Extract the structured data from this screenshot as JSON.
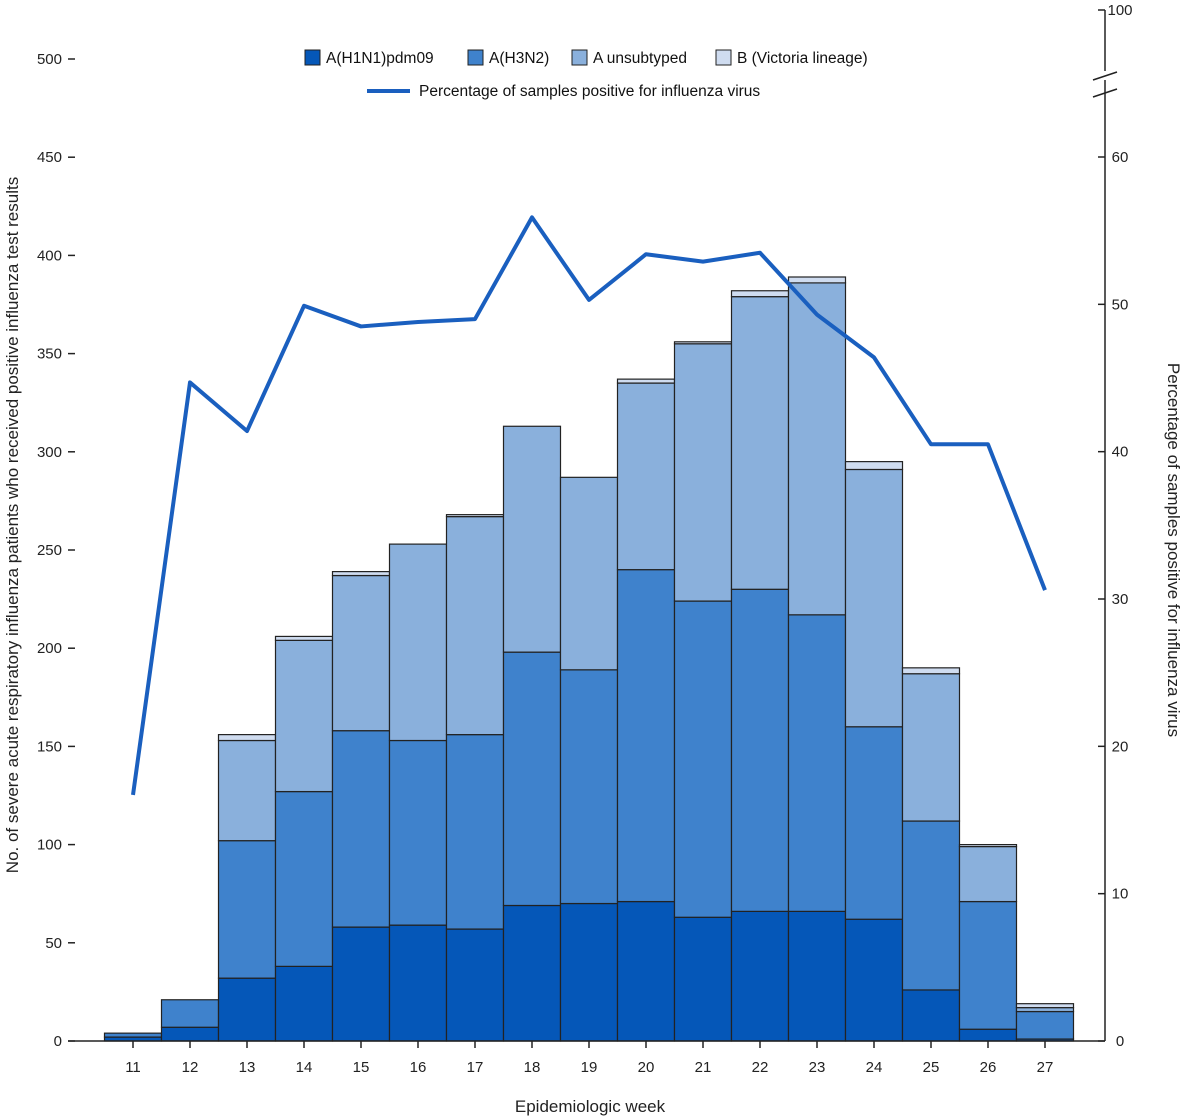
{
  "chart_data": {
    "type": "bar",
    "stacked": true,
    "title": "",
    "xlabel": "Epidemiologic week",
    "ylabel": "No. of severe acute respiratory influenza patients who received positive influenza test results",
    "y2label": "Percentage of samples positive for influenza virus",
    "ylim": [
      0,
      500
    ],
    "y2lim": [
      0,
      100
    ],
    "y2_axis_break": [
      60,
      100
    ],
    "yticks": [
      0,
      50,
      100,
      150,
      200,
      250,
      300,
      350,
      400,
      450,
      500
    ],
    "y2ticks": [
      0,
      10,
      20,
      30,
      40,
      50,
      60,
      100
    ],
    "legend_position": "top-center",
    "grid": false,
    "categories": [
      "11",
      "12",
      "13",
      "14",
      "15",
      "16",
      "17",
      "18",
      "19",
      "20",
      "21",
      "22",
      "23",
      "24",
      "25",
      "26",
      "27"
    ],
    "series": [
      {
        "name": "A(H1N1)pdm09",
        "color": "#0557b8",
        "values": [
          2,
          7,
          32,
          38,
          58,
          59,
          57,
          69,
          70,
          71,
          63,
          66,
          66,
          62,
          26,
          6,
          1
        ]
      },
      {
        "name": "A(H3N2)",
        "color": "#3f82cc",
        "values": [
          2,
          14,
          70,
          89,
          100,
          94,
          99,
          129,
          119,
          169,
          161,
          164,
          151,
          98,
          86,
          65,
          14
        ]
      },
      {
        "name": "A unsubtyped",
        "color": "#8ab0dc",
        "values": [
          0,
          0,
          51,
          77,
          79,
          100,
          111,
          115,
          98,
          95,
          131,
          149,
          169,
          131,
          75,
          28,
          2
        ]
      },
      {
        "name": "B (Victoria lineage)",
        "color": "#cfdcf0",
        "values": [
          0,
          0,
          3,
          2,
          2,
          0,
          1,
          0,
          0,
          2,
          1,
          3,
          3,
          4,
          3,
          1,
          2
        ]
      }
    ],
    "line_series": {
      "name": "Percentage of samples positive for influenza virus",
      "color": "#1a5fbf",
      "axis": "right",
      "values": [
        16.7,
        44.7,
        41.4,
        49.9,
        48.5,
        48.8,
        49.0,
        55.9,
        50.3,
        53.4,
        52.9,
        53.5,
        49.3,
        46.4,
        40.5,
        40.5,
        30.6
      ]
    }
  }
}
